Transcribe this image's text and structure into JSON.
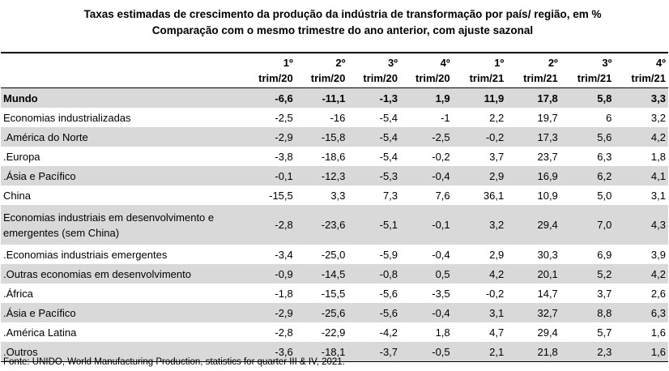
{
  "title_line1": "Taxas estimadas de crescimento da produção da indústria de transformação por país/ região, em %",
  "title_line2": "Comparação com o mesmo trimestre do ano anterior, com ajuste sazonal",
  "columns": [
    {
      "top": "1º",
      "bottom": "trim/20"
    },
    {
      "top": "2º",
      "bottom": "trim/20"
    },
    {
      "top": "3º",
      "bottom": "trim/20"
    },
    {
      "top": "4º",
      "bottom": "trim/20"
    },
    {
      "top": "1º",
      "bottom": "trim/21"
    },
    {
      "top": "2º",
      "bottom": "trim/21"
    },
    {
      "top": "3º",
      "bottom": "trim/21"
    },
    {
      "top": "4º",
      "bottom": "trim/21"
    }
  ],
  "rows": [
    {
      "label": "Mundo",
      "values": [
        "-6,6",
        "-11,1",
        "-1,3",
        "1,9",
        "11,9",
        "17,8",
        "5,8",
        "3,3"
      ]
    },
    {
      "label": "Economias industrializadas",
      "values": [
        "-2,5",
        "-16",
        "-5,4",
        "-1",
        "2,2",
        "19,7",
        "6",
        "3,2"
      ]
    },
    {
      "label": ".América do Norte",
      "values": [
        "-2,9",
        "-15,8",
        "-5,4",
        "-2,5",
        "-0,2",
        "17,3",
        "5,6",
        "4,2"
      ]
    },
    {
      "label": ".Europa",
      "values": [
        "-3,8",
        "-18,6",
        "-5,4",
        "-0,2",
        "3,7",
        "23,7",
        "6,3",
        "1,8"
      ]
    },
    {
      "label": ".Ásia e Pacífico",
      "values": [
        "-0,1",
        "-12,3",
        "-5,3",
        "-0,4",
        "2,9",
        "16,9",
        "6,2",
        "4,1"
      ]
    },
    {
      "label": "China",
      "values": [
        "-15,5",
        "3,3",
        "7,3",
        "7,6",
        "36,1",
        "10,9",
        "5,0",
        "3,1"
      ]
    },
    {
      "label": "Economias industriais em desenvolvimento e emergentes (sem China)",
      "values": [
        "-2,8",
        "-23,6",
        "-5,1",
        "-0,1",
        "3,2",
        "29,4",
        "7,0",
        "4,3"
      ]
    },
    {
      "label": ".Economias industriais emergentes",
      "values": [
        "-3,4",
        "-25,0",
        "-5,9",
        "-0,4",
        "2,9",
        "30,3",
        "6,9",
        "3,9"
      ]
    },
    {
      "label": ".Outras economias em desenvolvimento",
      "values": [
        "-0,9",
        "-14,5",
        "-0,8",
        "0,5",
        "4,2",
        "20,1",
        "5,2",
        "4,2"
      ]
    },
    {
      "label": ".África",
      "values": [
        "-1,8",
        "-15,5",
        "-5,6",
        "-3,5",
        "-0,2",
        "14,7",
        "3,7",
        "2,6"
      ]
    },
    {
      "label": ".Ásia e Pacífico",
      "values": [
        "-2,9",
        "-25,6",
        "-5,6",
        "-0,4",
        "3,1",
        "32,7",
        "8,8",
        "6,3"
      ]
    },
    {
      "label": ".América Latina",
      "values": [
        "-2,8",
        "-22,9",
        "-4,2",
        "1,8",
        "4,7",
        "29,4",
        "5,7",
        "1,6"
      ]
    },
    {
      "label": ".Outros",
      "values": [
        "-3,6",
        "-18,1",
        "-3,7",
        "-0,5",
        "2,1",
        "21,8",
        "2,3",
        "1,6"
      ]
    }
  ],
  "source": "Fonte: UNIDO, World Manufacturing Production, statistics for quarter III & IV, 2021.",
  "colors": {
    "shade": "#d9d9d9"
  }
}
